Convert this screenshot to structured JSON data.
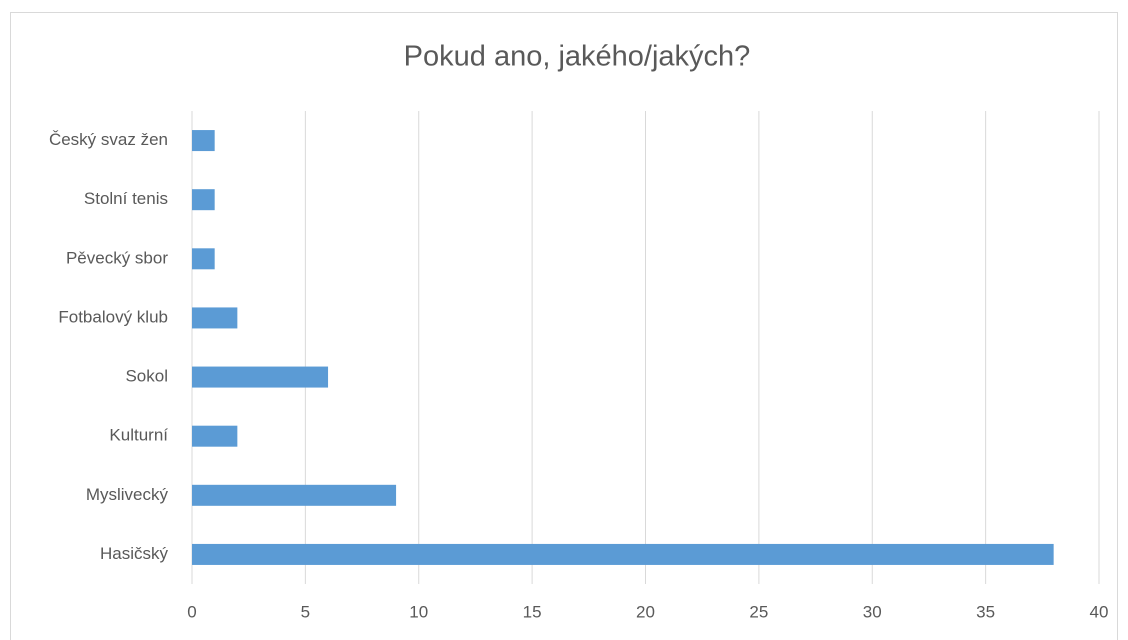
{
  "chart_data": {
    "type": "hbar",
    "title": "Pokud ano, jakého/jakých?",
    "categories": [
      "Hasičský",
      "Myslivecký",
      "Kulturní",
      "Sokol",
      "Fotbalový klub",
      "Pěvecký sbor",
      "Stolní tenis",
      "Český svaz žen"
    ],
    "values": [
      38,
      9,
      2,
      6,
      2,
      1,
      1,
      1
    ],
    "color": "#5b9bd5",
    "xlim": [
      0,
      40
    ],
    "xticks": [
      0,
      5,
      10,
      15,
      20,
      25,
      30,
      35,
      40
    ],
    "grid": true
  }
}
